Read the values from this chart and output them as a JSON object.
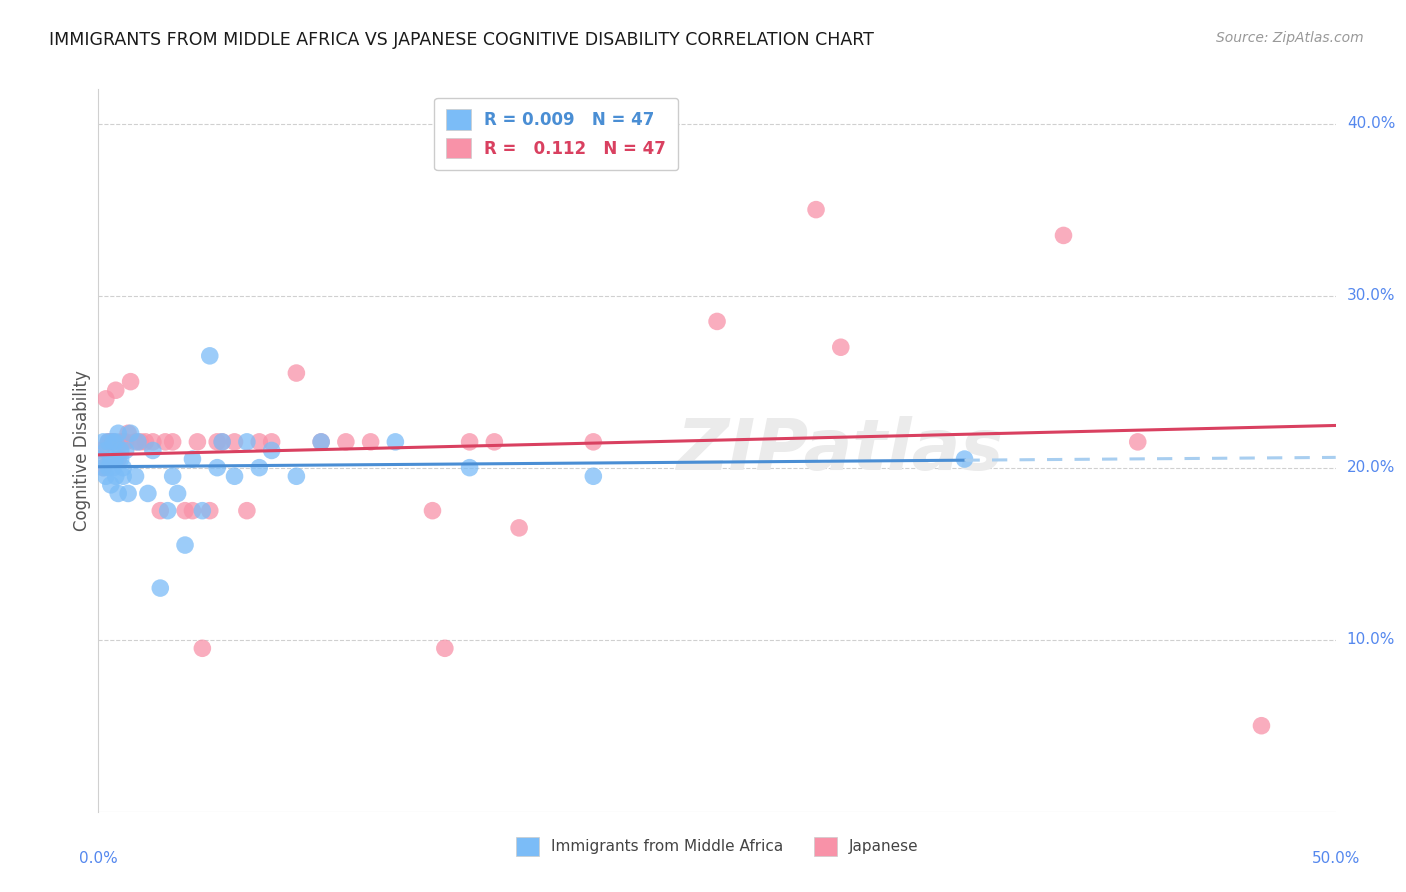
{
  "title": "IMMIGRANTS FROM MIDDLE AFRICA VS JAPANESE COGNITIVE DISABILITY CORRELATION CHART",
  "source": "Source: ZipAtlas.com",
  "ylabel": "Cognitive Disability",
  "xlim": [
    0.0,
    0.5
  ],
  "ylim": [
    0.0,
    0.42
  ],
  "color_blue": "#7bbcf7",
  "color_pink": "#f892a8",
  "color_trend_blue": "#4a8ed4",
  "color_trend_pink": "#d94060",
  "color_trend_blue_dash": "#a8cef0",
  "color_grid": "#d0d0d0",
  "color_axis_label": "#5588ee",
  "watermark_text": "ZIPatlas",
  "watermark_color": "#ebebeb",
  "ytick_labels": [
    "10.0%",
    "20.0%",
    "30.0%",
    "40.0%"
  ],
  "ytick_vals": [
    0.1,
    0.2,
    0.3,
    0.4
  ],
  "blue_x": [
    0.001,
    0.002,
    0.002,
    0.003,
    0.003,
    0.004,
    0.004,
    0.005,
    0.005,
    0.006,
    0.006,
    0.007,
    0.007,
    0.007,
    0.008,
    0.008,
    0.009,
    0.009,
    0.01,
    0.01,
    0.011,
    0.012,
    0.013,
    0.045,
    0.015,
    0.016,
    0.02,
    0.022,
    0.03,
    0.032,
    0.038,
    0.042,
    0.048,
    0.06,
    0.07,
    0.08,
    0.09,
    0.065,
    0.055,
    0.05,
    0.12,
    0.15,
    0.2,
    0.035,
    0.025,
    0.028,
    0.35
  ],
  "blue_y": [
    0.205,
    0.2,
    0.215,
    0.195,
    0.21,
    0.2,
    0.215,
    0.19,
    0.205,
    0.2,
    0.215,
    0.205,
    0.215,
    0.195,
    0.185,
    0.22,
    0.205,
    0.21,
    0.2,
    0.195,
    0.21,
    0.185,
    0.22,
    0.265,
    0.195,
    0.215,
    0.185,
    0.21,
    0.195,
    0.185,
    0.205,
    0.175,
    0.2,
    0.215,
    0.21,
    0.195,
    0.215,
    0.2,
    0.195,
    0.215,
    0.215,
    0.2,
    0.195,
    0.155,
    0.13,
    0.175,
    0.205
  ],
  "pink_x": [
    0.001,
    0.002,
    0.003,
    0.004,
    0.005,
    0.006,
    0.007,
    0.008,
    0.009,
    0.01,
    0.011,
    0.012,
    0.013,
    0.015,
    0.017,
    0.019,
    0.022,
    0.025,
    0.03,
    0.035,
    0.04,
    0.045,
    0.05,
    0.06,
    0.07,
    0.09,
    0.11,
    0.135,
    0.16,
    0.2,
    0.25,
    0.29,
    0.39,
    0.3,
    0.42,
    0.47,
    0.038,
    0.027,
    0.055,
    0.08,
    0.065,
    0.17,
    0.048,
    0.1,
    0.15,
    0.14,
    0.042
  ],
  "pink_y": [
    0.21,
    0.2,
    0.24,
    0.215,
    0.215,
    0.215,
    0.245,
    0.205,
    0.215,
    0.215,
    0.215,
    0.22,
    0.25,
    0.215,
    0.215,
    0.215,
    0.215,
    0.175,
    0.215,
    0.175,
    0.215,
    0.175,
    0.215,
    0.175,
    0.215,
    0.215,
    0.215,
    0.175,
    0.215,
    0.215,
    0.285,
    0.35,
    0.335,
    0.27,
    0.215,
    0.05,
    0.175,
    0.215,
    0.215,
    0.255,
    0.215,
    0.165,
    0.215,
    0.215,
    0.215,
    0.095,
    0.095
  ]
}
